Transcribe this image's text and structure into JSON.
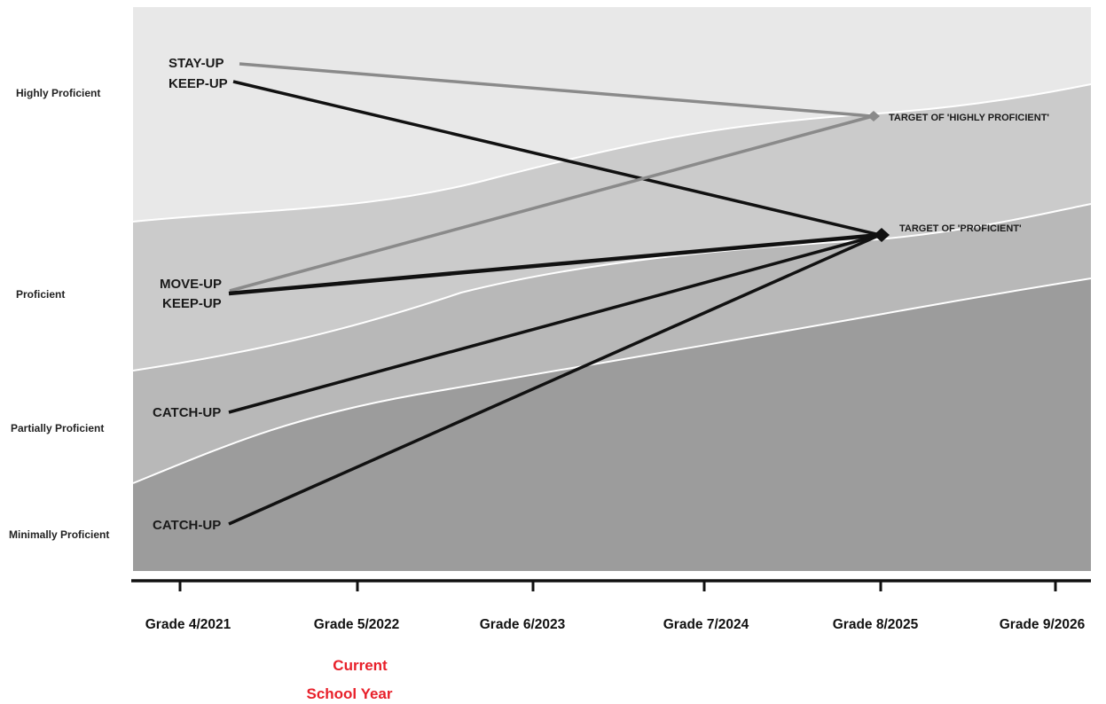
{
  "bands": [
    {
      "label": "Highly Proficient",
      "color": "#e8e8e8"
    },
    {
      "label": "Proficient",
      "color": "#cbcbcb"
    },
    {
      "label": "Partially Proficient",
      "color": "#b8b8b8"
    },
    {
      "label": "Minimally Proficient",
      "color": "#9c9c9c"
    }
  ],
  "timeline": [
    "Grade 4/2021",
    "Grade 5/2022",
    "Grade 6/2023",
    "Grade 7/2024",
    "Grade 8/2025",
    "Grade 9/2026"
  ],
  "current_year": {
    "line1": "Current",
    "line2": "School Year",
    "color": "#e8202a"
  },
  "paths": [
    {
      "label": "STAY-UP",
      "target": "highly_proficient",
      "color": "#8a8a8a"
    },
    {
      "label": "KEEP-UP",
      "target": "proficient",
      "color": "#111111"
    },
    {
      "label": "MOVE-UP",
      "target": "highly_proficient",
      "color": "#8a8a8a"
    },
    {
      "label": "KEEP-UP",
      "target": "proficient",
      "color": "#111111"
    },
    {
      "label": "CATCH-UP",
      "target": "proficient",
      "color": "#111111"
    },
    {
      "label": "CATCH-UP",
      "target": "proficient",
      "color": "#111111"
    }
  ],
  "targets": {
    "highly_proficient": {
      "label": "TARGET OF 'HIGHLY PROFICIENT'",
      "color": "#8a8a8a"
    },
    "proficient": {
      "label": "TARGET OF 'PROFICIENT'",
      "color": "#111111"
    }
  }
}
